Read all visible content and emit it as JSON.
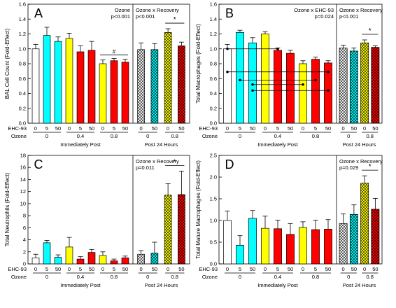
{
  "shared": {
    "row_labels": [
      "EHC-93",
      "Ozone"
    ],
    "ehc_ticks": [
      "0",
      "5",
      "50",
      "0",
      "5",
      "50",
      "0",
      "5",
      "50"
    ],
    "ehc_ticks_post": [
      "0",
      "50",
      "0",
      "50"
    ],
    "ozone_ticks": [
      "0",
      "0.4",
      "0.8"
    ],
    "ozone_ticks_post": [
      "0",
      "0.8"
    ],
    "group_immediate": "Immediately Post",
    "group_post": "Post 24 Hours",
    "star": "*",
    "colors": {
      "ozone0": "#ffffff",
      "ozone04": "#ffff00",
      "ozone08": "#ff0000",
      "ehc": "#00ffff"
    }
  },
  "chart_data": [
    {
      "type": "bar",
      "panel": "A",
      "ylabel": "BAL Cell Count (Fold-Effect)",
      "ylim": [
        0,
        1.6
      ],
      "yticks": [
        "0.0",
        "0.2",
        "0.4",
        "0.6",
        "0.8",
        "1.0",
        "1.2",
        "1.4",
        "1.6"
      ],
      "immediate": {
        "categories": [
          "0/0",
          "5/0",
          "50/0",
          "0/0.4",
          "5/0.4",
          "50/0.4",
          "0/0.8",
          "5/0.8",
          "50/0.8"
        ],
        "values": [
          1.0,
          1.18,
          1.1,
          1.14,
          0.96,
          0.98,
          0.8,
          0.84,
          0.82
        ],
        "errors": [
          0.06,
          0.11,
          0.06,
          0.07,
          0.08,
          0.12,
          0.05,
          0.03,
          0.04
        ]
      },
      "post": {
        "categories": [
          "0/0",
          "50/0",
          "0/0.8",
          "50/0.8"
        ],
        "values": [
          0.99,
          0.99,
          1.22,
          1.04
        ],
        "errors": [
          0.09,
          0.08,
          0.05,
          0.05
        ]
      },
      "stats_left": [
        "Ozone",
        "p<0.001"
      ],
      "stats_right": [
        "Ozone x Recovery",
        "p<0.001"
      ],
      "sig_right": "*",
      "sig_left": "#"
    },
    {
      "type": "bar",
      "panel": "B",
      "ylabel": "Total Macrophages (Fold-Effect)",
      "ylim": [
        0,
        1.6
      ],
      "yticks": [
        "0.0",
        "0.2",
        "0.4",
        "0.6",
        "0.8",
        "1.0",
        "1.2",
        "1.4",
        "1.6"
      ],
      "immediate": {
        "categories": [
          "0/0",
          "5/0",
          "50/0",
          "0/0.4",
          "5/0.4",
          "50/0.4",
          "0/0.8",
          "5/0.8",
          "50/0.8"
        ],
        "values": [
          1.0,
          1.22,
          1.08,
          1.2,
          0.98,
          0.94,
          0.8,
          0.86,
          0.81
        ],
        "errors": [
          0.06,
          0.03,
          0.07,
          0.03,
          0.03,
          0.04,
          0.04,
          0.03,
          0.03
        ]
      },
      "post": {
        "categories": [
          "0/0",
          "50/0",
          "0/0.8",
          "50/0.8"
        ],
        "values": [
          1.01,
          0.97,
          1.08,
          1.02
        ],
        "errors": [
          0.04,
          0.04,
          0.04,
          0.02
        ]
      },
      "stats_left": [
        "Ozone x EHC-93",
        "p=0.024"
      ],
      "stats_right": [
        "Ozone x Recovery",
        "p<0.001"
      ],
      "sig_right": "*"
    },
    {
      "type": "bar",
      "panel": "C",
      "ylabel": "Total Neutrophils (Fold-Effect)",
      "ylim": [
        0,
        18
      ],
      "yticks": [
        "0",
        "2",
        "4",
        "6",
        "8",
        "10",
        "12",
        "14",
        "16",
        "18"
      ],
      "immediate": {
        "categories": [
          "0/0",
          "5/0",
          "50/0",
          "0/0.4",
          "5/0.4",
          "50/0.4",
          "0/0.8",
          "5/0.8",
          "50/0.8"
        ],
        "values": [
          1.0,
          3.5,
          1.1,
          2.8,
          0.8,
          1.9,
          1.4,
          0.5,
          1.0
        ],
        "errors": [
          0.6,
          0.4,
          0.4,
          1.6,
          0.4,
          0.5,
          0.6,
          0.3,
          0.3
        ]
      },
      "post": {
        "categories": [
          "0/0",
          "50/0",
          "0/0.8",
          "50/0.8"
        ],
        "values": [
          1.6,
          1.8,
          11.4,
          11.5
        ],
        "errors": [
          0.6,
          1.8,
          1.9,
          3.9
        ]
      },
      "stats_right": [
        "Ozone x Recovery",
        "p=0.011"
      ],
      "sig_right": "*"
    },
    {
      "type": "bar",
      "panel": "D",
      "ylabel": "Total Mature Macrophages (Fold-Effect)",
      "ylim": [
        0,
        2.5
      ],
      "yticks": [
        "0.0",
        "0.5",
        "1.0",
        "1.5",
        "2.0",
        "2.5"
      ],
      "immediate": {
        "categories": [
          "0/0",
          "5/0",
          "50/0",
          "0/0.4",
          "5/0.4",
          "50/0.4",
          "0/0.8",
          "5/0.8",
          "50/0.8"
        ],
        "values": [
          1.0,
          0.43,
          1.05,
          0.82,
          0.81,
          0.68,
          0.84,
          0.79,
          0.8
        ],
        "errors": [
          0.22,
          0.22,
          0.18,
          0.28,
          0.2,
          0.25,
          0.13,
          0.22,
          0.22
        ]
      },
      "post": {
        "categories": [
          "0/0",
          "50/0",
          "0/0.8",
          "50/0.8"
        ],
        "values": [
          0.93,
          1.14,
          1.86,
          1.26
        ],
        "errors": [
          0.22,
          0.22,
          0.17,
          0.25
        ]
      },
      "stats_right": [
        "Ozone x Recovery",
        "p=0.029"
      ],
      "sig_right": "*"
    }
  ]
}
